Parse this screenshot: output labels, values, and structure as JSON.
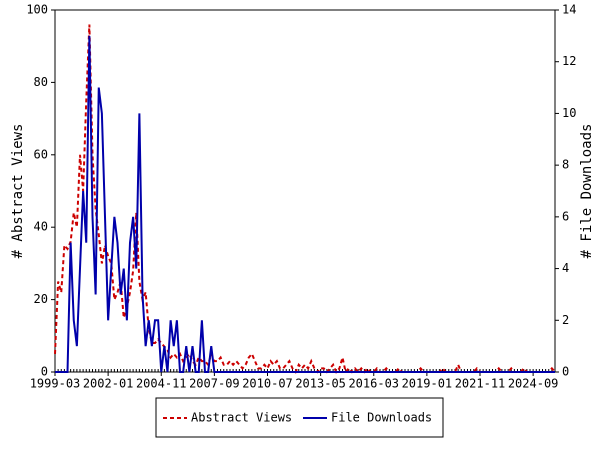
{
  "chart_data": {
    "type": "line",
    "ylabel": "# Abstract Views",
    "y2label": "# File Downloads",
    "x": [
      "1999-03",
      "1999-05",
      "1999-07",
      "1999-09",
      "1999-11",
      "2000-01",
      "2000-03",
      "2000-05",
      "2000-07",
      "2000-09",
      "2000-11",
      "2001-01",
      "2001-03",
      "2001-05",
      "2001-07",
      "2001-09",
      "2001-11",
      "2002-01",
      "2002-03",
      "2002-05",
      "2002-07",
      "2002-09",
      "2002-11",
      "2003-01",
      "2003-03",
      "2003-05",
      "2003-07",
      "2003-09",
      "2003-11",
      "2004-01",
      "2004-03",
      "2004-05",
      "2004-07",
      "2004-09",
      "2004-11",
      "2005-01",
      "2005-03",
      "2005-05",
      "2005-07",
      "2005-09",
      "2005-11",
      "2006-01",
      "2006-03",
      "2006-05",
      "2006-07",
      "2006-09",
      "2006-11",
      "2007-01",
      "2007-03",
      "2007-05",
      "2007-07",
      "2007-09",
      "2007-11",
      "2008-01",
      "2008-03",
      "2008-05",
      "2008-07",
      "2008-09",
      "2008-11",
      "2009-01",
      "2009-03",
      "2009-05",
      "2009-07",
      "2009-09",
      "2009-11",
      "2010-01",
      "2010-03",
      "2010-05",
      "2010-07",
      "2010-09",
      "2010-11",
      "2011-01",
      "2011-03",
      "2011-05",
      "2011-07",
      "2011-09",
      "2011-11",
      "2012-01",
      "2012-03",
      "2012-05",
      "2012-07",
      "2012-09",
      "2012-11",
      "2013-01",
      "2013-03",
      "2013-05",
      "2013-07",
      "2013-09",
      "2013-11",
      "2014-01",
      "2014-03",
      "2014-05",
      "2014-07",
      "2014-09",
      "2014-11",
      "2015-01",
      "2015-03",
      "2015-05",
      "2015-07",
      "2015-09",
      "2015-11",
      "2016-01",
      "2016-03",
      "2016-05",
      "2016-07",
      "2016-09",
      "2016-11",
      "2017-01",
      "2017-03",
      "2017-05",
      "2017-07",
      "2017-09",
      "2017-11",
      "2018-01",
      "2018-03",
      "2018-05",
      "2018-07",
      "2018-09",
      "2018-11",
      "2019-01",
      "2019-03",
      "2019-05",
      "2019-07",
      "2019-09",
      "2019-11",
      "2020-01",
      "2020-03",
      "2020-05",
      "2020-07",
      "2020-09",
      "2020-11",
      "2021-01",
      "2021-03",
      "2021-05",
      "2021-07",
      "2021-09",
      "2021-11",
      "2022-01",
      "2022-03",
      "2022-05",
      "2022-07",
      "2022-09",
      "2022-11",
      "2023-01",
      "2023-03",
      "2023-05",
      "2023-07",
      "2023-09",
      "2023-11",
      "2024-01",
      "2024-03",
      "2024-05",
      "2024-07",
      "2024-09",
      "2024-11",
      "2025-01",
      "2025-03",
      "2025-05",
      "2025-07",
      "2025-09",
      "2025-11"
    ],
    "xlim": [
      "1999-03",
      "2025-11"
    ],
    "xticks": [
      "1999-03",
      "2002-01",
      "2004-11",
      "2007-09",
      "2010-07",
      "2013-05",
      "2016-03",
      "2019-01",
      "2021-11",
      "2024-09"
    ],
    "ylim": [
      0,
      100
    ],
    "yticks": [
      0,
      20,
      40,
      60,
      80,
      100
    ],
    "y2lim": [
      0,
      14
    ],
    "y2ticks": [
      0,
      2,
      4,
      6,
      8,
      10,
      12,
      14
    ],
    "legend": "bottom",
    "series": [
      {
        "name": "Abstract Views",
        "color": "#cc0000",
        "dash": true,
        "values": [
          5,
          25,
          22,
          35,
          34,
          36,
          44,
          40,
          60,
          50,
          75,
          96,
          60,
          45,
          38,
          30,
          35,
          32,
          30,
          20,
          22,
          25,
          15,
          18,
          22,
          28,
          44,
          25,
          20,
          22,
          12,
          8,
          8,
          9,
          8,
          7,
          6,
          4,
          5,
          4,
          5,
          3,
          4,
          5,
          3,
          2,
          4,
          3,
          3,
          2,
          5,
          3,
          3,
          4,
          2,
          2,
          3,
          2,
          3,
          2,
          1,
          2,
          4,
          5,
          3,
          1,
          1,
          2,
          1,
          3,
          2,
          3,
          1,
          1,
          2,
          3,
          1,
          0,
          2,
          1,
          2,
          1,
          3,
          1,
          0,
          1,
          1,
          0,
          1,
          2,
          0,
          1,
          4,
          0,
          1,
          0,
          1,
          0,
          1,
          0,
          1,
          0,
          0,
          1,
          0,
          0,
          1,
          0,
          0,
          0,
          1,
          0,
          0,
          0,
          0,
          0,
          0,
          1,
          0,
          0,
          0,
          0,
          0,
          0,
          1,
          0,
          0,
          0,
          0,
          2,
          0,
          0,
          0,
          0,
          0,
          1,
          0,
          0,
          0,
          0,
          0,
          0,
          1,
          0,
          0,
          0,
          1,
          0,
          0,
          0,
          1,
          0,
          0,
          0,
          0,
          0,
          0,
          0,
          0,
          1,
          0
        ]
      },
      {
        "name": "File Downloads",
        "color": "#0000aa",
        "axis": "y2",
        "values": [
          0,
          0,
          0,
          0,
          0,
          5,
          2,
          1,
          4,
          7,
          5,
          13,
          6,
          3,
          11,
          10,
          6,
          2,
          4,
          6,
          5,
          3,
          4,
          2,
          5,
          6,
          4,
          10,
          3,
          1,
          2,
          1,
          2,
          2,
          0,
          1,
          0,
          2,
          1,
          2,
          0,
          0,
          1,
          0,
          1,
          0,
          0,
          2,
          0,
          0,
          1,
          0,
          0,
          0,
          0,
          0,
          0,
          0,
          0,
          0,
          0,
          0,
          0,
          0,
          0,
          0,
          0,
          0,
          0,
          0,
          0,
          0,
          0,
          0,
          0,
          0,
          0,
          0,
          0,
          0,
          0,
          0,
          0,
          0,
          0,
          0,
          0,
          0,
          0,
          0,
          0,
          0,
          0,
          0,
          0,
          0,
          0,
          0,
          0,
          0,
          0,
          0,
          0,
          0,
          0,
          0,
          0,
          0,
          0,
          0,
          0,
          0,
          0,
          0,
          0,
          0,
          0,
          0,
          0,
          0,
          0,
          0,
          0,
          0,
          0,
          0,
          0,
          0,
          0,
          0,
          0,
          0,
          0,
          0,
          0,
          0,
          0,
          0,
          0,
          0,
          0,
          0,
          0,
          0,
          0,
          0,
          0,
          0,
          0,
          0,
          0,
          0,
          0,
          0,
          0,
          0,
          0,
          0,
          0,
          0,
          0
        ]
      }
    ]
  }
}
